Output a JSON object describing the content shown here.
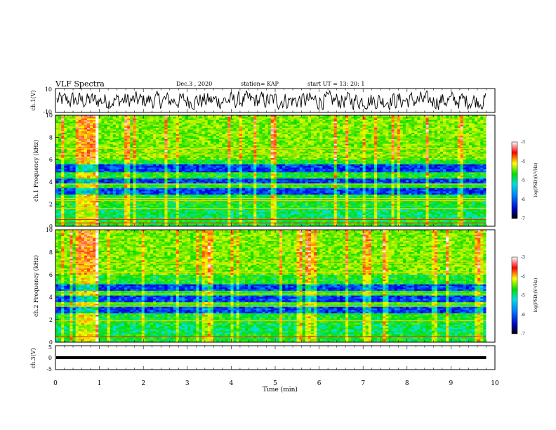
{
  "header": {
    "title": "VLF Spectra",
    "date": "Dec.3 , 2020",
    "station": "station= KAP",
    "start_ut": "start UT = 13: 20: 1"
  },
  "chart_data": [
    {
      "type": "line",
      "ylabel": "ch.1(V)",
      "ylim": [
        -10,
        10
      ],
      "y_ticks": [
        "10",
        "-10"
      ],
      "xlim": [
        0,
        10
      ],
      "description_values": "noisy waveform oscillating roughly between -8 and 8 V across 0-9.8 min"
    },
    {
      "type": "heatmap",
      "ylabel": "ch.1 Frequency (kHz)",
      "ylim": [
        0,
        10
      ],
      "y_ticks": [
        "0",
        "2",
        "4",
        "6",
        "8",
        "10"
      ],
      "xlim": [
        0,
        10
      ],
      "data_end_min": 9.8,
      "colorbar": {
        "label": "log(PSD)(V²/Hz)",
        "range": [
          -7,
          -3
        ],
        "ticks": [
          "-3",
          "-4",
          "-5",
          "-6",
          "-7"
        ]
      },
      "features": {
        "burst_window_min": [
          0.45,
          1.0
        ],
        "low_power_bands_khz": [
          [
            3.8,
            4.3
          ],
          [
            4.8,
            5.6
          ],
          [
            2.9,
            3.4
          ]
        ],
        "horizontal_lines_khz": [
          0.3,
          0.6,
          1.6,
          2.3,
          2.5,
          3.8,
          6.5,
          7.0
        ]
      }
    },
    {
      "type": "heatmap",
      "ylabel": "ch.2 Frequency (kHz)",
      "ylim": [
        0,
        10
      ],
      "y_ticks": [
        "0",
        "2",
        "4",
        "6",
        "8",
        "10"
      ],
      "xlim": [
        0,
        10
      ],
      "data_end_min": 9.8,
      "colorbar": {
        "label": "log(PSD)(V²/Hz)",
        "range": [
          -7,
          -3
        ],
        "ticks": [
          "-3",
          "-4",
          "-5",
          "-6",
          "-7"
        ]
      },
      "features": {
        "burst_window_min": [
          0.45,
          1.0
        ],
        "low_power_bands_khz": [
          [
            3.6,
            4.2
          ],
          [
            2.6,
            3.2
          ],
          [
            4.6,
            5.2
          ]
        ],
        "horizontal_lines_khz": [
          0.5,
          1.9,
          3.2,
          3.4,
          4.3,
          6.2,
          7.0
        ]
      }
    },
    {
      "type": "line",
      "ylabel": "ch.3(V)",
      "ylim": [
        -5,
        5
      ],
      "y_ticks": [
        "5",
        "0",
        "-5"
      ],
      "xlim": [
        0,
        10
      ],
      "description_values": "thick nearly constant band near 0 V from 0 to 9.8 min"
    }
  ],
  "xaxis": {
    "label": "Time (min)",
    "ticks": [
      "0",
      "1",
      "2",
      "3",
      "4",
      "5",
      "6",
      "7",
      "8",
      "9",
      "10"
    ]
  },
  "colors": {
    "scale": [
      "#000080",
      "#0000ff",
      "#00ffff",
      "#00ff00",
      "#ffff00",
      "#ff0000",
      "#ffffff"
    ]
  }
}
